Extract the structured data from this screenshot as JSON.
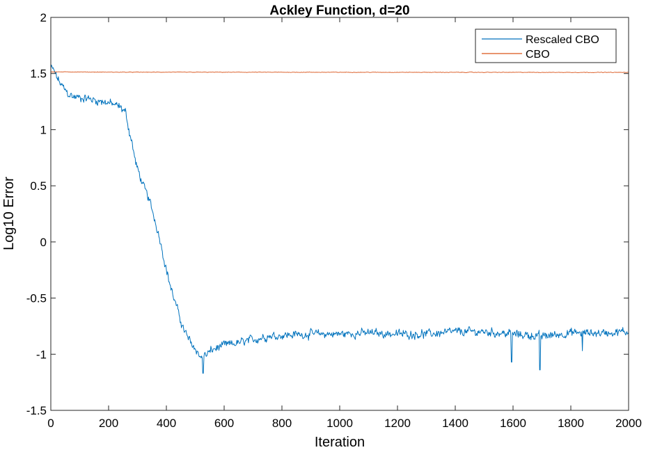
{
  "chart_data": {
    "type": "line",
    "title": "Ackley Function, d=20",
    "xlabel": "Iteration",
    "ylabel": "Log10 Error",
    "xlim": [
      0,
      2000
    ],
    "ylim": [
      -1.5,
      2
    ],
    "xticks": [
      0,
      200,
      400,
      600,
      800,
      1000,
      1200,
      1400,
      1600,
      1800,
      2000
    ],
    "yticks": [
      -1.5,
      -1,
      -0.5,
      0,
      0.5,
      1,
      1.5,
      2
    ],
    "ytick_labels": [
      "-1.5",
      "-1",
      "-0.5",
      "0",
      "0.5",
      "1",
      "1.5",
      "2"
    ],
    "grid": false,
    "legend_position": "top-right",
    "series": [
      {
        "name": "Rescaled CBO",
        "color": "#0072BD",
        "noise": 0.05,
        "anchors": [
          [
            0,
            1.55
          ],
          [
            10,
            1.53
          ],
          [
            20,
            1.47
          ],
          [
            35,
            1.4
          ],
          [
            60,
            1.32
          ],
          [
            80,
            1.29
          ],
          [
            120,
            1.28
          ],
          [
            160,
            1.26
          ],
          [
            200,
            1.24
          ],
          [
            240,
            1.2
          ],
          [
            260,
            1.15
          ],
          [
            270,
            1.0
          ],
          [
            280,
            0.9
          ],
          [
            290,
            0.75
          ],
          [
            300,
            0.65
          ],
          [
            320,
            0.5
          ],
          [
            340,
            0.38
          ],
          [
            360,
            0.2
          ],
          [
            380,
            0.0
          ],
          [
            400,
            -0.25
          ],
          [
            420,
            -0.45
          ],
          [
            440,
            -0.62
          ],
          [
            460,
            -0.78
          ],
          [
            480,
            -0.88
          ],
          [
            500,
            -0.95
          ],
          [
            520,
            -1.03
          ],
          [
            540,
            -1.0
          ],
          [
            560,
            -0.96
          ],
          [
            600,
            -0.92
          ],
          [
            650,
            -0.9
          ],
          [
            700,
            -0.87
          ],
          [
            750,
            -0.84
          ],
          [
            800,
            -0.83
          ],
          [
            900,
            -0.82
          ],
          [
            1000,
            -0.82
          ],
          [
            1100,
            -0.81
          ],
          [
            1200,
            -0.82
          ],
          [
            1300,
            -0.82
          ],
          [
            1400,
            -0.8
          ],
          [
            1500,
            -0.8
          ],
          [
            1600,
            -0.82
          ],
          [
            1700,
            -0.84
          ],
          [
            1800,
            -0.81
          ],
          [
            1900,
            -0.81
          ],
          [
            2000,
            -0.8
          ]
        ],
        "dips": [
          [
            527,
            -1.17
          ],
          [
            1693,
            -1.14
          ],
          [
            1595,
            -1.07
          ],
          [
            1840,
            -0.97
          ]
        ]
      },
      {
        "name": "CBO",
        "color": "#D95319",
        "noise": 0.003,
        "anchors": [
          [
            0,
            1.515
          ],
          [
            200,
            1.512
          ],
          [
            2000,
            1.51
          ]
        ],
        "dips": []
      }
    ]
  }
}
